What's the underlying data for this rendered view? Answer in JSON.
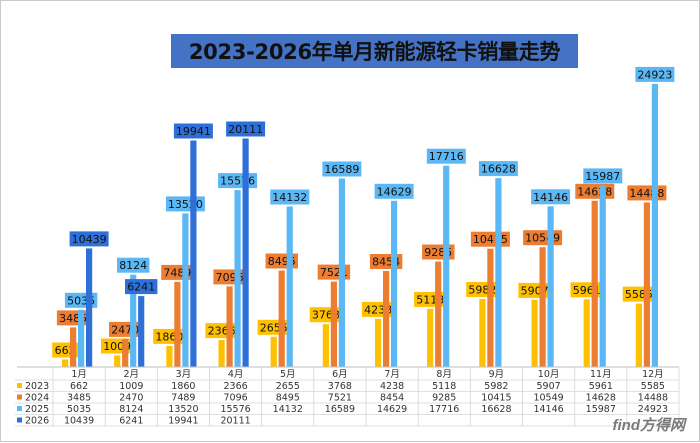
{
  "chart_data": {
    "type": "bar",
    "title": "2023-2026年单月新能源轻卡销量走势",
    "categories": [
      "1月",
      "2月",
      "3月",
      "4月",
      "5月",
      "6月",
      "7月",
      "8月",
      "9月",
      "10月",
      "11月",
      "12月"
    ],
    "series": [
      {
        "name": "2023",
        "color": "#ffc000",
        "values": [
          662,
          1009,
          1860,
          2366,
          2655,
          3768,
          4238,
          5118,
          5982,
          5907,
          5961,
          5585
        ]
      },
      {
        "name": "2024",
        "color": "#ed7d31",
        "values": [
          3485,
          2470,
          7489,
          7096,
          8495,
          7521,
          8454,
          9285,
          10415,
          10549,
          14628,
          14488
        ]
      },
      {
        "name": "2025",
        "color": "#5bb8f5",
        "values": [
          5035,
          8124,
          13520,
          15576,
          14132,
          16589,
          14629,
          17716,
          16628,
          14146,
          15987,
          24923
        ]
      },
      {
        "name": "2026",
        "color": "#2f6fd8",
        "values": [
          10439,
          6241,
          19941,
          20111,
          null,
          null,
          null,
          null,
          null,
          null,
          null,
          null
        ]
      }
    ],
    "ylim": [
      0,
      25000
    ],
    "grid": false,
    "legend": "data-table-below"
  },
  "watermark": "find方得网"
}
